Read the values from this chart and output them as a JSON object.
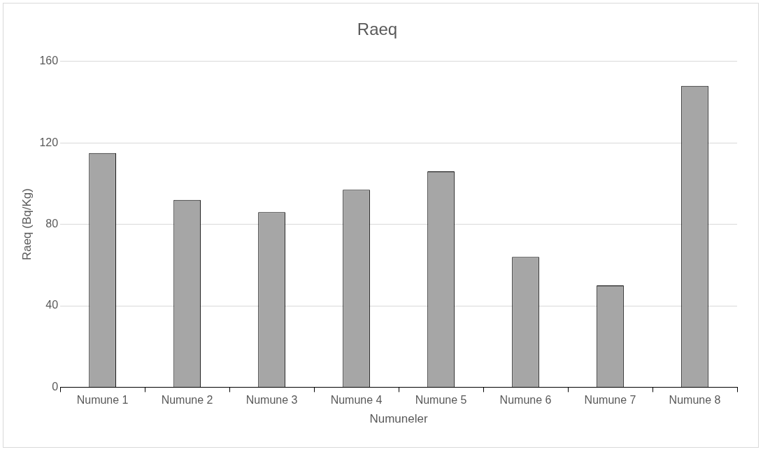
{
  "chart_data": {
    "type": "bar",
    "title": "Raeq",
    "xlabel": "Numuneler",
    "ylabel": "Raeq (Bq/Kg)",
    "categories": [
      "Numune 1",
      "Numune 2",
      "Numune 3",
      "Numune 4",
      "Numune 5",
      "Numune 6",
      "Numune 7",
      "Numune 8"
    ],
    "values": [
      115,
      92,
      86,
      97,
      106,
      64,
      50,
      148
    ],
    "color": "#a6a6a6",
    "ylim": [
      0,
      160
    ],
    "yticks": [
      0,
      40,
      80,
      120,
      160
    ],
    "grid": "y",
    "legend": false
  }
}
